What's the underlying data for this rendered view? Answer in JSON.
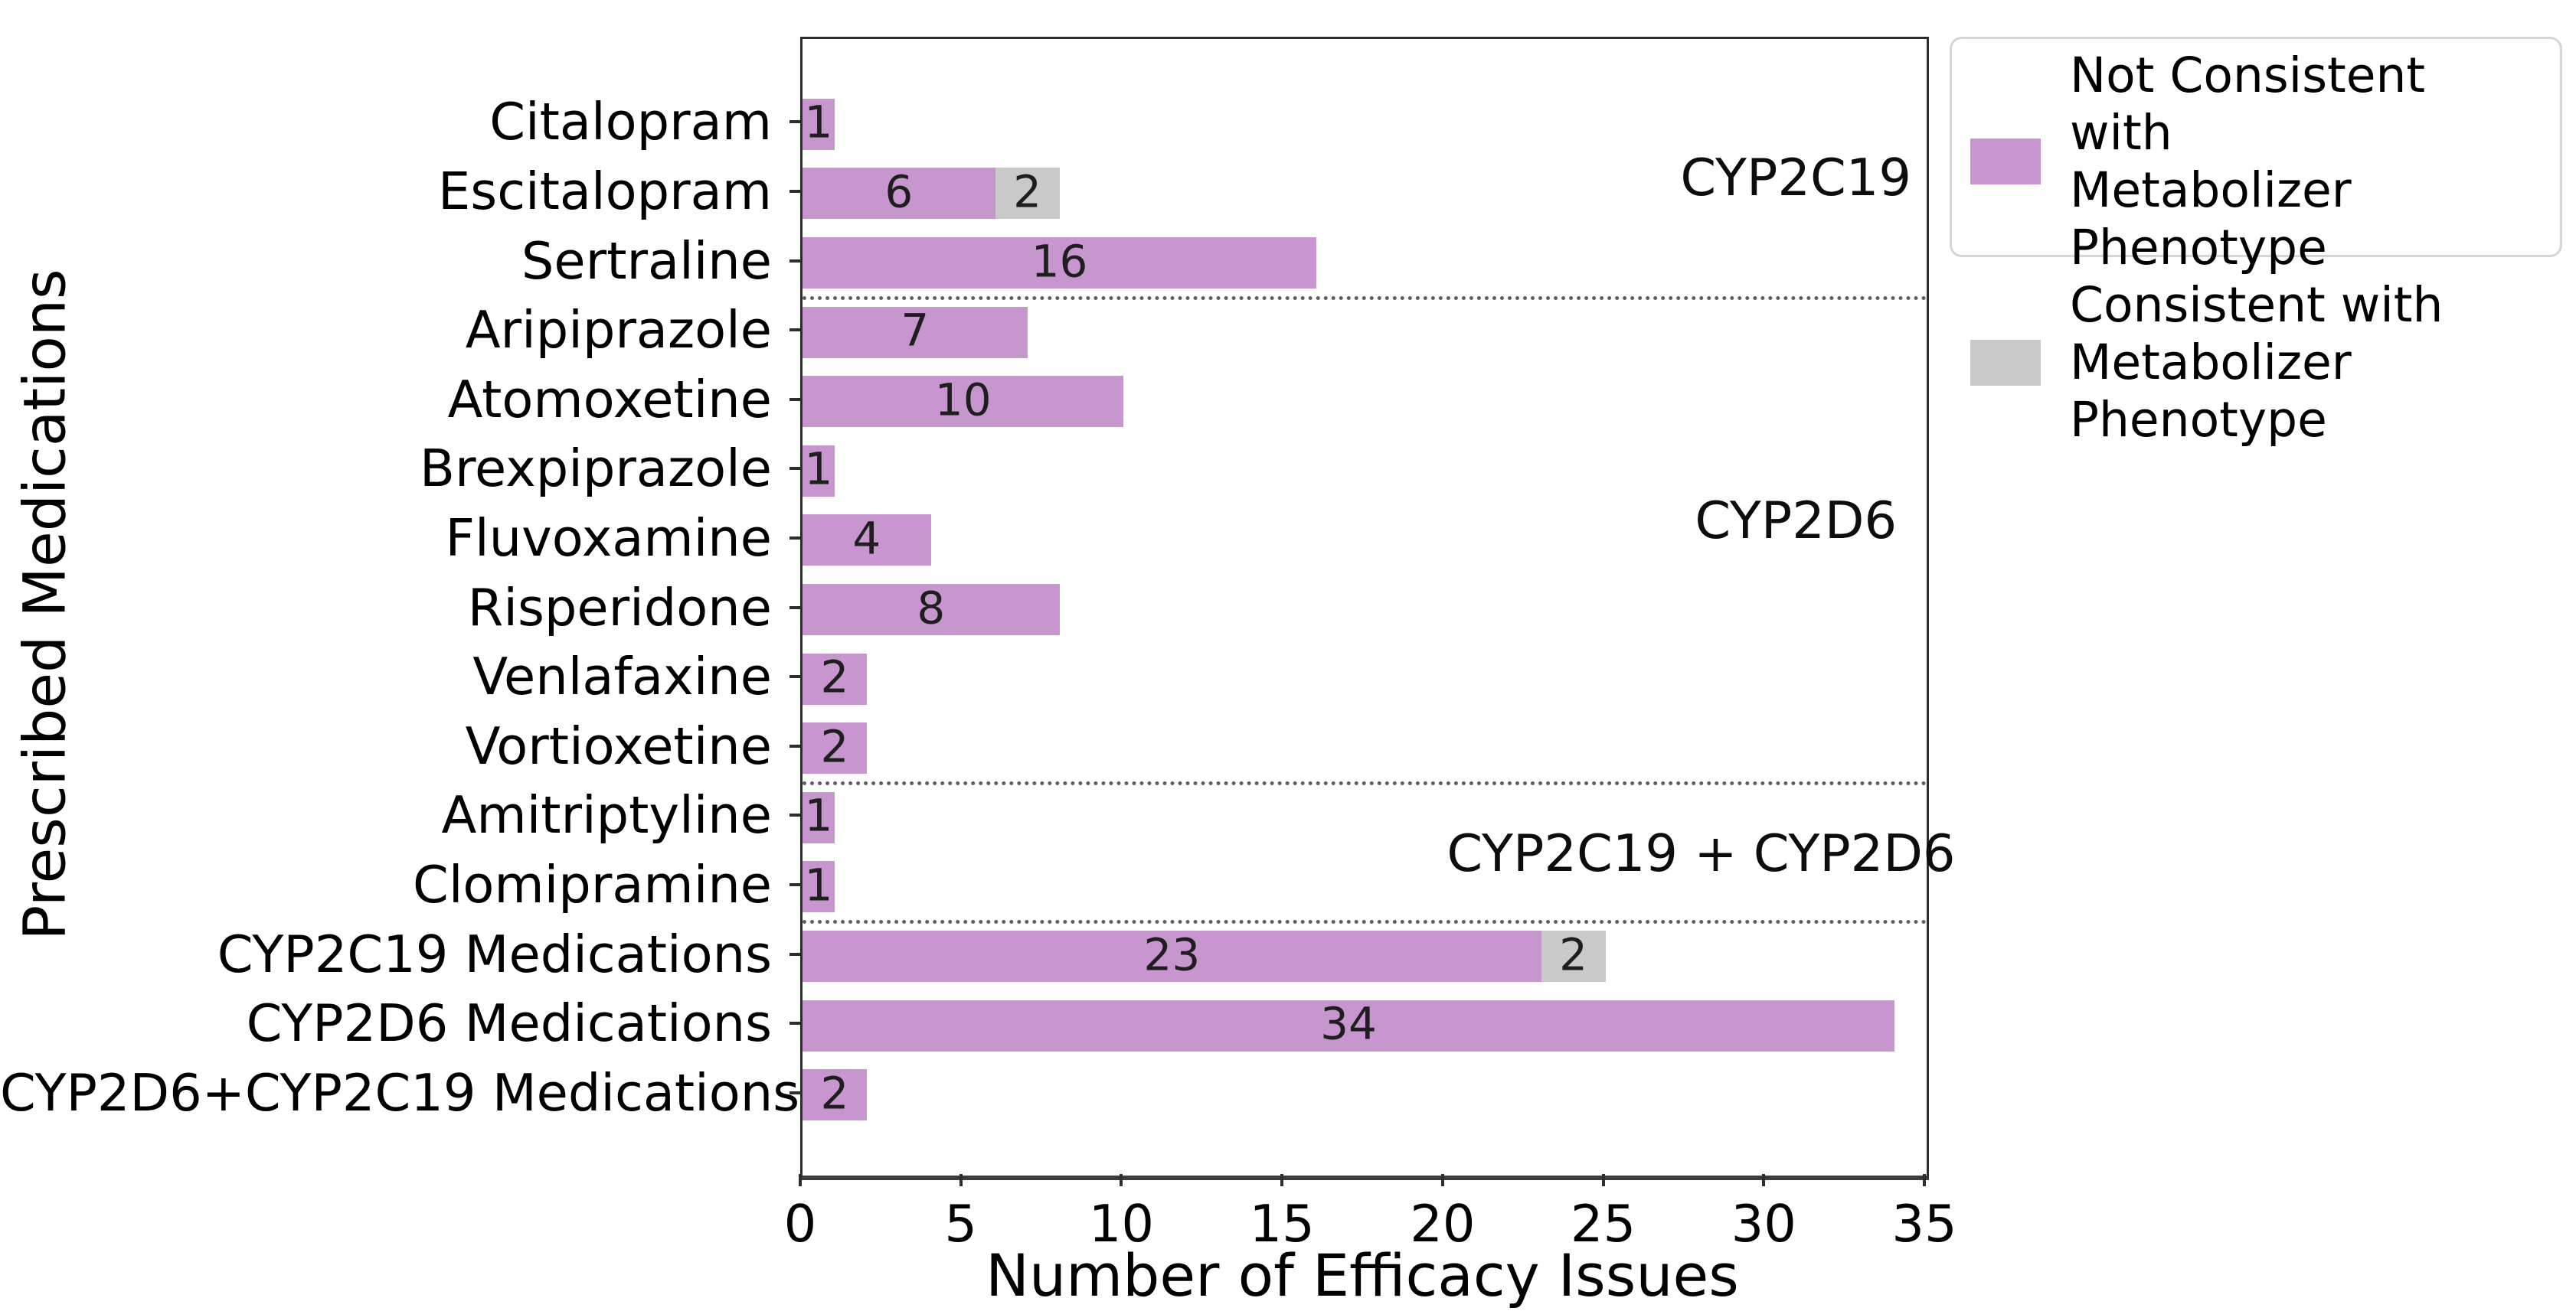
{
  "chart_data": {
    "type": "bar",
    "orientation": "horizontal",
    "xlabel": "Number of Efficacy Issues",
    "ylabel": "Prescribed Medications",
    "xlim": [
      0,
      35
    ],
    "x_ticks": [
      0,
      5,
      10,
      15,
      20,
      25,
      30,
      35
    ],
    "grid": false,
    "categories": [
      "Citalopram",
      "Escitalopram",
      "Sertraline",
      "Aripiprazole",
      "Atomoxetine",
      "Brexpiprazole",
      "Fluvoxamine",
      "Risperidone",
      "Venlafaxine",
      "Vortioxetine",
      "Amitriptyline",
      "Clomipramine",
      "CYP2C19 Medications",
      "CYP2D6 Medications",
      "CYP2D6+CYP2C19 Medications"
    ],
    "series": [
      {
        "name": "Not Consistent with Metabolizer Phenotype",
        "color": "#c796ce",
        "values": [
          1,
          6,
          16,
          7,
          10,
          1,
          4,
          8,
          2,
          2,
          1,
          1,
          23,
          34,
          2
        ]
      },
      {
        "name": "Consistent with Metabolizer Phenotype",
        "color": "#c9c9c9",
        "values": [
          0,
          2,
          0,
          0,
          0,
          0,
          0,
          0,
          0,
          0,
          0,
          0,
          2,
          0,
          0
        ]
      }
    ],
    "bar_value_labels_visible": true,
    "separators_after_rows": [
      2,
      9,
      11
    ],
    "annotations": [
      {
        "text": "CYP2C19",
        "x": 31.0,
        "row": 0.8
      },
      {
        "text": "CYP2D6",
        "x": 31.0,
        "row": 5.75
      },
      {
        "text": "CYP2C19 + CYP2D6",
        "x": 28.05,
        "row": 10.55
      }
    ],
    "legend": {
      "position": "outside upper right",
      "entries": [
        {
          "line1": "Not Consistent with",
          "line2": "Metabolizer Phenotype",
          "color": "#c796ce"
        },
        {
          "line1": "Consistent with",
          "line2": "Metabolizer Phenotype",
          "color": "#c9c9c9"
        }
      ]
    },
    "colors": {
      "spine": "#2d2d2d",
      "axis_bottom": "#3c3c3c",
      "separator": "#5f5f5f",
      "value_label": "#1e1e1e",
      "tick_label": "#000000"
    }
  }
}
